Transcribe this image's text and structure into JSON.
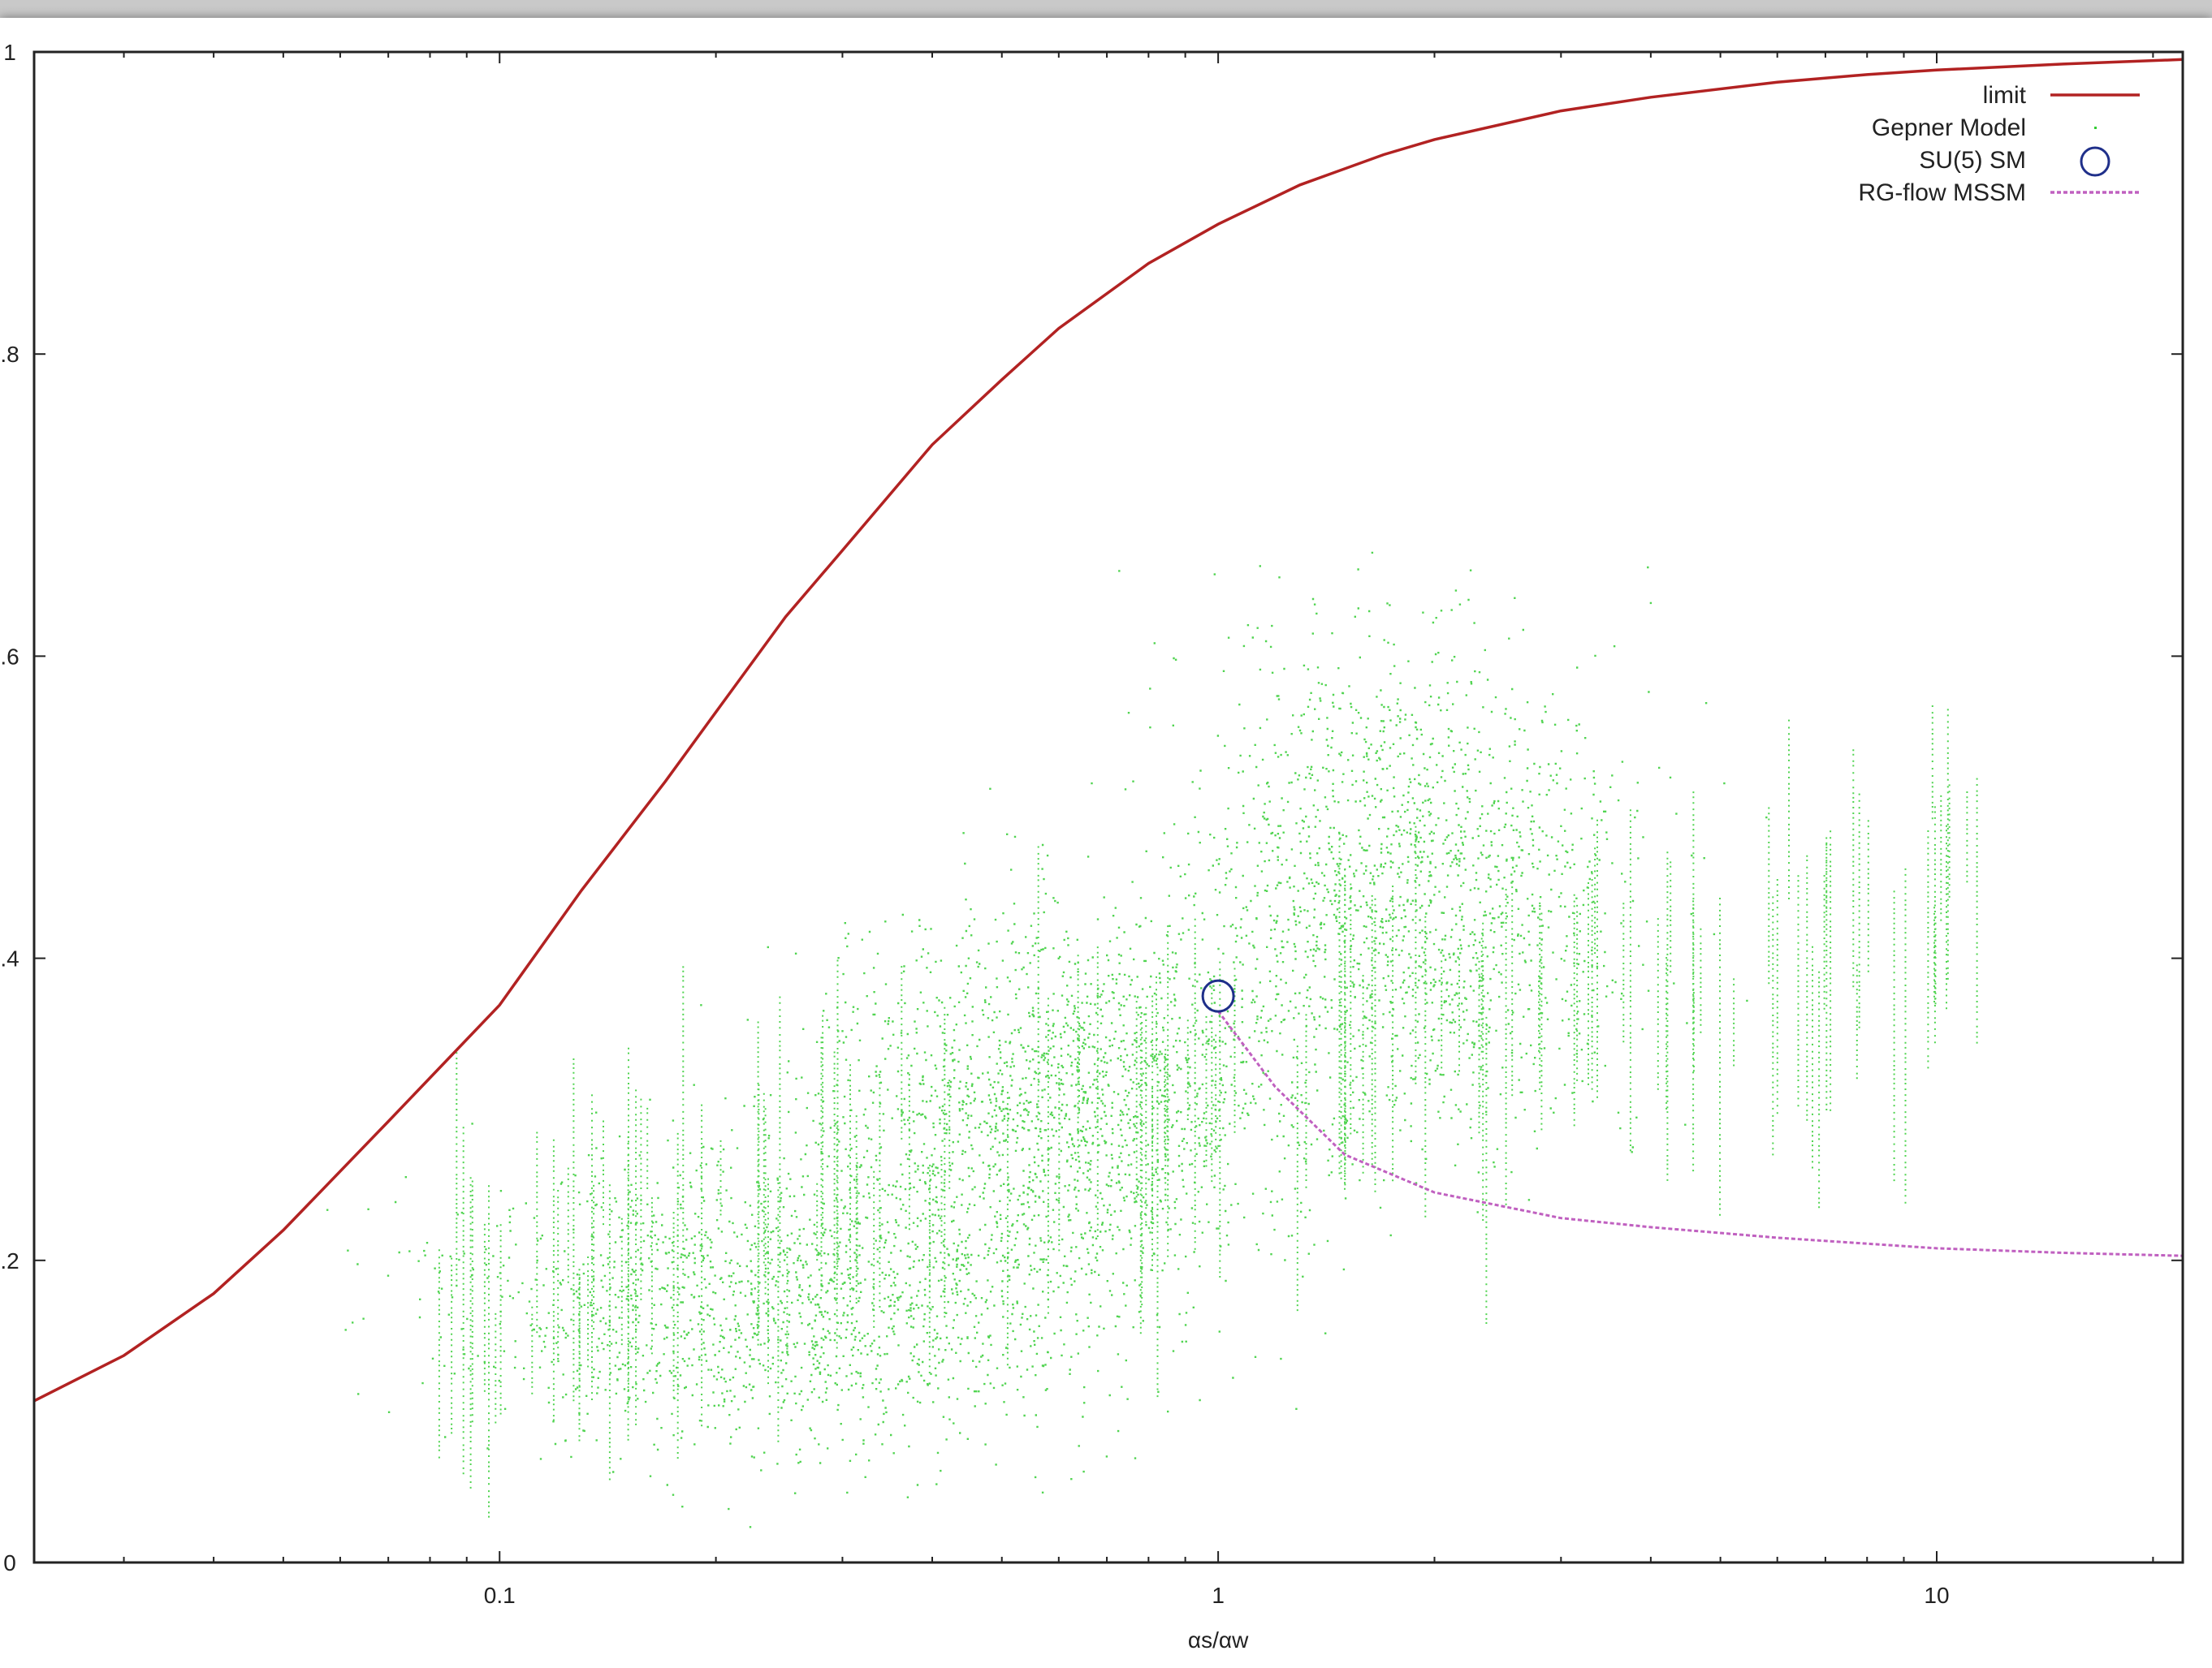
{
  "chart_data": {
    "type": "scatter",
    "xlabel": "αs/αw",
    "xscale": "log",
    "xlim": [
      0.0225,
      22
    ],
    "ylim": [
      0,
      1
    ],
    "x_ticks": [
      0.1,
      1,
      10
    ],
    "x_tick_labels": [
      "0.1",
      "1",
      "10"
    ],
    "y_ticks": [
      0,
      0.2,
      0.4,
      0.6,
      0.8,
      1
    ],
    "y_tick_labels": [
      "0",
      ".2",
      ".4",
      ".6",
      ".8",
      "1"
    ],
    "legend_position": "top-right",
    "grid": false,
    "series": [
      {
        "name": "limit",
        "kind": "line",
        "color": "#b22222",
        "x": [
          0.0225,
          0.03,
          0.04,
          0.05,
          0.07,
          0.1,
          0.13,
          0.17,
          0.2,
          0.25,
          0.3,
          0.4,
          0.5,
          0.6,
          0.8,
          1,
          1.3,
          1.7,
          2,
          3,
          4,
          6,
          8,
          10,
          15,
          22
        ],
        "y": [
          0.107,
          0.137,
          0.178,
          0.22,
          0.292,
          0.369,
          0.445,
          0.517,
          0.563,
          0.626,
          0.67,
          0.74,
          0.783,
          0.817,
          0.86,
          0.886,
          0.912,
          0.932,
          0.942,
          0.961,
          0.97,
          0.98,
          0.985,
          0.988,
          0.992,
          0.995
        ]
      },
      {
        "name": "Gepner Model",
        "kind": "scatter-cloud",
        "color": "#33cc33",
        "note_x_range": [
          0.03,
          20
        ],
        "clusters": [
          {
            "x_center": 0.25,
            "y_center": 0.17,
            "x_spread_dec": 0.5,
            "y_spread": 0.1,
            "weight": 0.3
          },
          {
            "x_center": 0.6,
            "y_center": 0.3,
            "x_spread_dec": 0.35,
            "y_spread": 0.14,
            "weight": 0.35
          },
          {
            "x_center": 1.8,
            "y_center": 0.45,
            "x_spread_dec": 0.35,
            "y_spread": 0.17,
            "weight": 0.35
          }
        ]
      },
      {
        "name": "SU(5) SM",
        "kind": "marker",
        "color": "#1f2f8a",
        "x": [
          1.0
        ],
        "y": [
          0.375
        ]
      },
      {
        "name": "RG-flow MSSM",
        "kind": "line",
        "color": "#c060c0",
        "x": [
          1.0,
          1.2,
          1.5,
          2,
          3,
          4,
          6,
          10,
          15,
          22
        ],
        "y": [
          0.365,
          0.315,
          0.27,
          0.245,
          0.228,
          0.222,
          0.215,
          0.208,
          0.205,
          0.203
        ]
      }
    ]
  }
}
